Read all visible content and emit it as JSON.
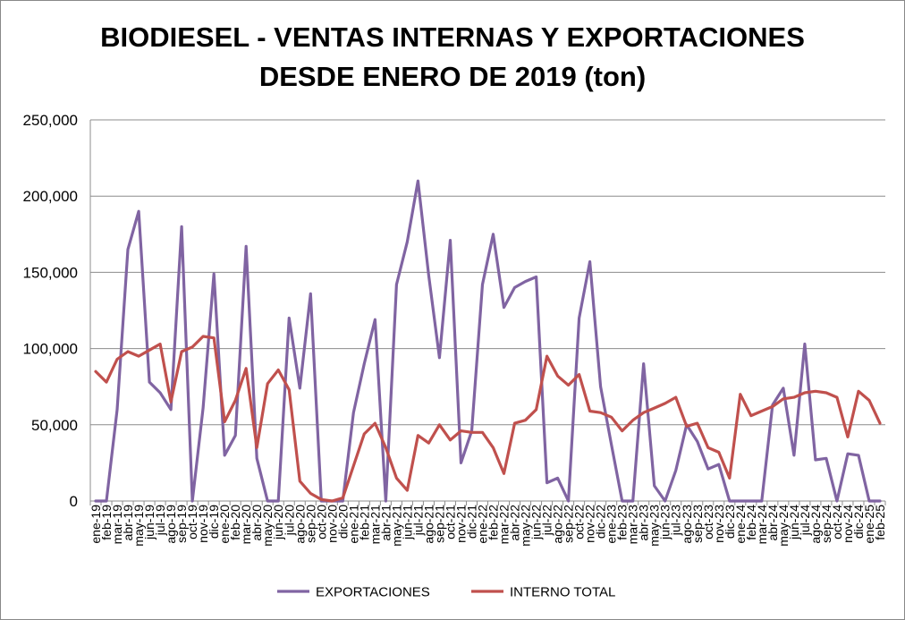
{
  "chart_data": {
    "type": "line",
    "title_line1": "BIODIESEL - VENTAS INTERNAS Y EXPORTACIONES",
    "title_line2": "DESDE ENERO DE 2019 (ton)",
    "xlabel": "",
    "ylabel": "",
    "ylim": [
      0,
      250000
    ],
    "yticks": [
      0,
      50000,
      100000,
      150000,
      200000,
      250000
    ],
    "ytick_labels": [
      "0",
      "50,000",
      "100,000",
      "150,000",
      "200,000",
      "250,000"
    ],
    "grid": true,
    "legend_position": "bottom",
    "categories": [
      "ene-19",
      "feb-19",
      "mar-19",
      "abr-19",
      "may-19",
      "jun-19",
      "jul-19",
      "ago-19",
      "sep-19",
      "oct-19",
      "nov-19",
      "dic-19",
      "ene-20",
      "feb-20",
      "mar-20",
      "abr-20",
      "may-20",
      "jun-20",
      "jul-20",
      "ago-20",
      "sep-20",
      "oct-20",
      "nov-20",
      "dic-20",
      "ene-21",
      "feb-21",
      "mar-21",
      "abr-21",
      "may-21",
      "jun-21",
      "jul-21",
      "ago-21",
      "sep-21",
      "oct-21",
      "nov-21",
      "dic-21",
      "ene-22",
      "feb-22",
      "mar-22",
      "abr-22",
      "may-22",
      "jun-22",
      "jul-22",
      "ago-22",
      "sep-22",
      "oct-22",
      "nov-22",
      "dic-22",
      "ene-23",
      "feb-23",
      "mar-23",
      "abr-23",
      "may-23",
      "jun-23",
      "jul-23",
      "ago-23",
      "sep-23",
      "oct-23",
      "nov-23",
      "dic-23",
      "ene-24",
      "feb-24",
      "mar-24",
      "abr-24",
      "may-24",
      "jun-24",
      "jul-24",
      "ago-24",
      "sep-24",
      "oct-24",
      "nov-24",
      "dic-24",
      "ene-25",
      "feb-25"
    ],
    "series": [
      {
        "name": "EXPORTACIONES",
        "color": "#8064a2",
        "values": [
          0,
          0,
          60000,
          165000,
          190000,
          78000,
          71000,
          60000,
          180000,
          0,
          61000,
          149000,
          30000,
          43000,
          167000,
          28000,
          0,
          0,
          120000,
          74000,
          136000,
          0,
          0,
          0,
          58000,
          90000,
          119000,
          0,
          142000,
          170000,
          210000,
          148000,
          94000,
          171000,
          25000,
          46000,
          142000,
          175000,
          127000,
          140000,
          144000,
          147000,
          12000,
          15000,
          0,
          120000,
          157000,
          75000,
          37000,
          0,
          0,
          90000,
          10000,
          0,
          20000,
          50000,
          39000,
          21000,
          24000,
          0,
          0,
          0,
          0,
          63000,
          74000,
          30000,
          103000,
          27000,
          28000,
          0,
          31000,
          30000,
          0,
          0
        ]
      },
      {
        "name": "INTERNO TOTAL",
        "color": "#c0504d",
        "values": [
          85000,
          78000,
          93000,
          98000,
          95000,
          99000,
          103000,
          65000,
          98000,
          101000,
          108000,
          107000,
          52000,
          66000,
          87000,
          35000,
          77000,
          86000,
          73000,
          13000,
          5000,
          1000,
          0,
          2000,
          23000,
          44000,
          51000,
          35000,
          15000,
          7000,
          43000,
          38000,
          50000,
          40000,
          46000,
          45000,
          45000,
          35000,
          18000,
          51000,
          53000,
          60000,
          95000,
          82000,
          76000,
          83000,
          59000,
          58000,
          55000,
          46000,
          53000,
          58000,
          61000,
          64000,
          68000,
          49000,
          51000,
          35000,
          32000,
          15000,
          70000,
          56000,
          59000,
          62000,
          67000,
          68000,
          71000,
          72000,
          71000,
          68000,
          42000,
          72000,
          66000,
          51000
        ]
      }
    ]
  }
}
